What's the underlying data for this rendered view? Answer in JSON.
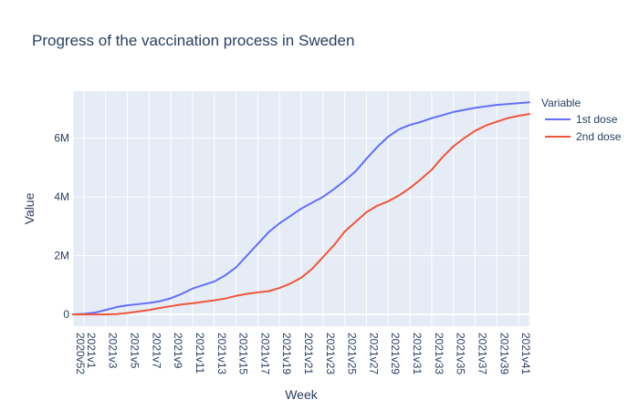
{
  "chart_data": {
    "type": "line",
    "title": "Progress of the vaccination process in Sweden",
    "xlabel": "Week",
    "ylabel": "Value",
    "legend_title": "Variable",
    "legend_position": "top-right",
    "grid": true,
    "ylim": [
      -400000,
      7600000
    ],
    "yticks": [
      0,
      2000000,
      4000000,
      6000000
    ],
    "ytick_labels": [
      "0",
      "2M",
      "4M",
      "6M"
    ],
    "x": [
      "2020v52",
      "2021v1",
      "2021v2",
      "2021v3",
      "2021v4",
      "2021v5",
      "2021v6",
      "2021v7",
      "2021v8",
      "2021v9",
      "2021v10",
      "2021v11",
      "2021v12",
      "2021v13",
      "2021v14",
      "2021v15",
      "2021v16",
      "2021v17",
      "2021v18",
      "2021v19",
      "2021v20",
      "2021v21",
      "2021v22",
      "2021v23",
      "2021v24",
      "2021v25",
      "2021v26",
      "2021v27",
      "2021v28",
      "2021v29",
      "2021v30",
      "2021v31",
      "2021v32",
      "2021v33",
      "2021v34",
      "2021v35",
      "2021v36",
      "2021v37",
      "2021v38",
      "2021v39",
      "2021v40",
      "2021v41",
      "2021v42"
    ],
    "xtick_labels": [
      "2020v52",
      "2021v1",
      "2021v3",
      "2021v5",
      "2021v7",
      "2021v9",
      "2021v11",
      "2021v13",
      "2021v15",
      "2021v17",
      "2021v19",
      "2021v21",
      "2021v23",
      "2021v25",
      "2021v27",
      "2021v29",
      "2021v31",
      "2021v33",
      "2021v35",
      "2021v37",
      "2021v39",
      "2021v41"
    ],
    "series": [
      {
        "name": "1st dose",
        "color": "#636efa",
        "values": [
          0,
          20000,
          60000,
          150000,
          250000,
          310000,
          350000,
          390000,
          450000,
          550000,
          700000,
          880000,
          1000000,
          1120000,
          1330000,
          1600000,
          2000000,
          2400000,
          2800000,
          3100000,
          3350000,
          3600000,
          3800000,
          4000000,
          4260000,
          4550000,
          4870000,
          5300000,
          5700000,
          6050000,
          6300000,
          6450000,
          6550000,
          6680000,
          6780000,
          6890000,
          6960000,
          7030000,
          7080000,
          7130000,
          7160000,
          7190000,
          7220000
        ]
      },
      {
        "name": "2nd dose",
        "color": "#ef553b",
        "values": [
          0,
          0,
          0,
          0,
          10000,
          50000,
          100000,
          150000,
          220000,
          280000,
          340000,
          380000,
          430000,
          480000,
          540000,
          630000,
          700000,
          750000,
          790000,
          900000,
          1050000,
          1250000,
          1550000,
          1950000,
          2350000,
          2820000,
          3150000,
          3480000,
          3700000,
          3850000,
          4050000,
          4300000,
          4600000,
          4920000,
          5350000,
          5720000,
          6000000,
          6250000,
          6430000,
          6560000,
          6680000,
          6760000,
          6820000
        ]
      }
    ]
  }
}
